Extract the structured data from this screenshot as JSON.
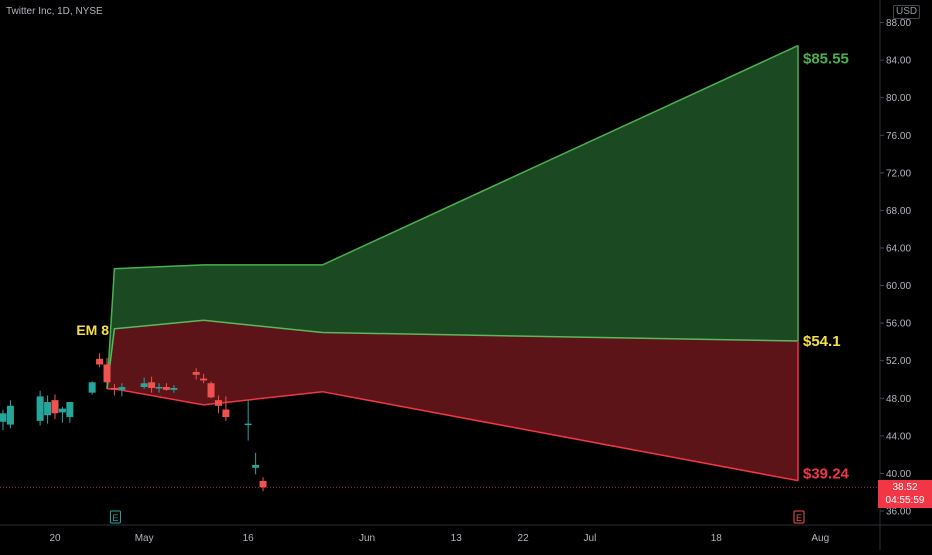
{
  "header": {
    "symbol": "Twitter Inc, 1D, NYSE",
    "currency": "USD"
  },
  "last_price": {
    "value": "38.52",
    "countdown": "04:55:59"
  },
  "colors": {
    "background": "#000000",
    "bull_fill": "#1b4a22",
    "bull_line": "#4caf50",
    "bear_fill": "#5c1419",
    "bear_line": "#f23645",
    "up_candle": "#26a69a",
    "down_candle": "#ef5350",
    "em_label": "#f5e04a",
    "axis_text": "#b2b5be"
  },
  "chart_data": {
    "type": "candlestick",
    "symbol": "Twitter Inc",
    "interval": "1D",
    "exchange": "NYSE",
    "y_axis": {
      "range": [
        35,
        90
      ],
      "ticks": [
        "36.00",
        "40.00",
        "44.00",
        "48.00",
        "52.00",
        "56.00",
        "60.00",
        "64.00",
        "68.00",
        "72.00",
        "76.00",
        "80.00",
        "84.00",
        "88.00"
      ]
    },
    "x_axis": {
      "ticks": [
        {
          "label": "20",
          "date": "2022-04-20"
        },
        {
          "label": "May",
          "date": "2022-05-02"
        },
        {
          "label": "16",
          "date": "2022-05-16"
        },
        {
          "label": "Jun",
          "date": "2022-06-01"
        },
        {
          "label": "13",
          "date": "2022-06-13"
        },
        {
          "label": "22",
          "date": "2022-06-22"
        },
        {
          "label": "Jul",
          "date": "2022-07-01"
        },
        {
          "label": "18",
          "date": "2022-07-18"
        },
        {
          "label": "Aug",
          "date": "2022-08-01"
        }
      ]
    },
    "candles": [
      {
        "date": "2022-04-12",
        "open": 45.0,
        "high": 47.5,
        "low": 44.5,
        "close": 46.6
      },
      {
        "date": "2022-04-13",
        "open": 45.5,
        "high": 46.8,
        "low": 44.6,
        "close": 46.4
      },
      {
        "date": "2022-04-14",
        "open": 45.2,
        "high": 47.8,
        "low": 44.8,
        "close": 47.2
      },
      {
        "date": "2022-04-18",
        "open": 45.6,
        "high": 48.8,
        "low": 45.1,
        "close": 48.2
      },
      {
        "date": "2022-04-19",
        "open": 46.2,
        "high": 48.3,
        "low": 45.3,
        "close": 47.6
      },
      {
        "date": "2022-04-20",
        "open": 47.8,
        "high": 48.4,
        "low": 45.8,
        "close": 46.4
      },
      {
        "date": "2022-04-21",
        "open": 46.5,
        "high": 47.1,
        "low": 45.4,
        "close": 46.9
      },
      {
        "date": "2022-04-22",
        "open": 46.0,
        "high": 47.3,
        "low": 45.4,
        "close": 47.6
      },
      {
        "date": "2022-04-25",
        "open": 48.6,
        "high": 49.8,
        "low": 48.4,
        "close": 49.7
      },
      {
        "date": "2022-04-26",
        "open": 52.2,
        "high": 52.8,
        "low": 51.3,
        "close": 51.6
      },
      {
        "date": "2022-04-27",
        "open": 51.6,
        "high": 52.3,
        "low": 49.7,
        "close": 49.7
      },
      {
        "date": "2022-04-28",
        "open": 49.1,
        "high": 49.5,
        "low": 48.3,
        "close": 48.9
      },
      {
        "date": "2022-04-29",
        "open": 48.9,
        "high": 49.6,
        "low": 48.2,
        "close": 49.2
      },
      {
        "date": "2022-05-02",
        "open": 49.2,
        "high": 50.2,
        "low": 49.0,
        "close": 49.6
      },
      {
        "date": "2022-05-03",
        "open": 49.7,
        "high": 50.3,
        "low": 48.6,
        "close": 49.1
      },
      {
        "date": "2022-05-04",
        "open": 49.1,
        "high": 49.6,
        "low": 48.6,
        "close": 49.2
      },
      {
        "date": "2022-05-05",
        "open": 49.2,
        "high": 49.6,
        "low": 48.8,
        "close": 48.9
      },
      {
        "date": "2022-05-06",
        "open": 48.9,
        "high": 49.4,
        "low": 48.6,
        "close": 49.1
      },
      {
        "date": "2022-05-09",
        "open": 50.8,
        "high": 51.2,
        "low": 50.0,
        "close": 50.5
      },
      {
        "date": "2022-05-10",
        "open": 50.1,
        "high": 50.6,
        "low": 49.6,
        "close": 49.9
      },
      {
        "date": "2022-05-11",
        "open": 49.6,
        "high": 49.8,
        "low": 48.0,
        "close": 48.1
      },
      {
        "date": "2022-05-12",
        "open": 47.8,
        "high": 48.3,
        "low": 46.4,
        "close": 47.2
      },
      {
        "date": "2022-05-13",
        "open": 46.8,
        "high": 48.2,
        "low": 45.6,
        "close": 46.0
      },
      {
        "date": "2022-05-16",
        "open": 45.2,
        "high": 47.8,
        "low": 43.5,
        "close": 45.3
      },
      {
        "date": "2022-05-17",
        "open": 40.6,
        "high": 42.2,
        "low": 39.9,
        "close": 40.9
      },
      {
        "date": "2022-05-18",
        "open": 39.2,
        "high": 39.6,
        "low": 38.1,
        "close": 38.52
      }
    ],
    "expected_move": {
      "label": "EM 8",
      "points": [
        {
          "date": "2022-04-27",
          "upper": 49.0,
          "mid": 49.0,
          "lower": 49.0
        },
        {
          "date": "2022-04-28",
          "upper": 61.8,
          "mid": 55.4,
          "lower": 49.0
        },
        {
          "date": "2022-05-10",
          "upper": 62.2,
          "mid": 56.3,
          "lower": 47.3
        },
        {
          "date": "2022-05-26",
          "upper": 62.2,
          "mid": 55.0,
          "lower": 48.7
        },
        {
          "date": "2022-07-29",
          "upper": 85.55,
          "mid": 54.1,
          "lower": 39.24
        }
      ],
      "end_labels": {
        "upper": "$85.55",
        "mid": "$54.1",
        "lower": "$39.24"
      }
    },
    "last_price_line": 38.52,
    "markers": [
      {
        "date": "2022-04-28",
        "letter": "E"
      },
      {
        "date": "2022-07-29",
        "letter": "E"
      }
    ]
  }
}
